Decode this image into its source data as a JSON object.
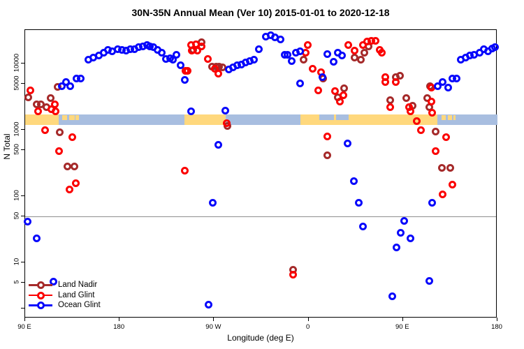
{
  "title": "30N-35N Annual Mean (Ver 10)   2015-01-01 to 2020-12-18",
  "axes": {
    "x": {
      "label": "Longitude (deg E)"
    },
    "y": {
      "label": "N Total"
    }
  },
  "legend": {
    "items": [
      "Land Nadir",
      "Land Glint",
      "Ocean Glint"
    ]
  },
  "colors": {
    "land_nadir": "#A52A2A",
    "land_glint": "#FB0000",
    "ocean_glint": "#0808FB",
    "band_ocean": "#A8BEE0",
    "band_land": "#FFD87D",
    "reference_line": "#8f8f8f",
    "axis": "#000000"
  },
  "chart_data": {
    "type": "scatter",
    "title": "30N-35N Annual Mean (Ver 10)   2015-01-01 to 2020-12-18",
    "xlabel": "Longitude (deg E)",
    "ylabel": "N Total",
    "x_mode": "longitude, continuous degrees east from 90 to 540 (wraps 90E-180-90W-0-90E-180)",
    "xlim": [
      90,
      540
    ],
    "y_scale": "log10",
    "ylim": [
      1.5,
      32000
    ],
    "x_ticks": [
      {
        "lon": 90,
        "label": "90 E"
      },
      {
        "lon": 180,
        "label": "180"
      },
      {
        "lon": 270,
        "label": "90 W"
      },
      {
        "lon": 360,
        "label": "0"
      },
      {
        "lon": 450,
        "label": "90 E"
      },
      {
        "lon": 540,
        "label": "180"
      }
    ],
    "y_ticks": [
      {
        "value": 5,
        "label": "5"
      },
      {
        "value": 10,
        "label": "10"
      },
      {
        "value": 50,
        "label": "50"
      },
      {
        "value": 100,
        "label": "100"
      },
      {
        "value": 500,
        "label": "500"
      },
      {
        "value": 1000,
        "label": "1000"
      },
      {
        "value": 5000,
        "label": "5000"
      },
      {
        "value": 10000,
        "label": "10000"
      }
    ],
    "y_minor_ticks": [
      2
    ],
    "reference_line_y": 50,
    "legend_position": "bottom-left",
    "grid": false,
    "map_band": {
      "description": "strip map of the 30N-35N latitude band",
      "value_range": [
        1190,
        1700
      ],
      "land_segments_lon": [
        [
          90,
          122
        ],
        [
          242,
          281
        ],
        [
          352,
          483
        ]
      ],
      "island_segments_lon": [
        [
          125,
          130
        ],
        [
          132,
          137
        ],
        [
          138,
          141
        ],
        [
          487,
          491
        ],
        [
          493,
          497
        ],
        [
          498,
          500
        ]
      ],
      "sea_overlay_segments_lon": [
        [
          370,
          384
        ],
        [
          386,
          398
        ]
      ]
    },
    "series": [
      {
        "name": "Land Nadir",
        "color_key": "land_nadir",
        "points": [
          [
            93,
            3100
          ],
          [
            101,
            2400
          ],
          [
            105,
            2450
          ],
          [
            110,
            2200
          ],
          [
            114,
            3000
          ],
          [
            121,
            4400
          ],
          [
            123,
            910
          ],
          [
            130,
            280
          ],
          [
            137,
            280
          ],
          [
            250,
            16000
          ],
          [
            258,
            20700
          ],
          [
            268,
            8900
          ],
          [
            272,
            8900
          ],
          [
            275,
            8900
          ],
          [
            278,
            8700
          ],
          [
            283,
            1130
          ],
          [
            345,
            7.7
          ],
          [
            355,
            11300
          ],
          [
            374,
            5900
          ],
          [
            378,
            410
          ],
          [
            388,
            3050
          ],
          [
            394,
            4200
          ],
          [
            404,
            12400
          ],
          [
            410,
            11300
          ],
          [
            413,
            14700
          ],
          [
            417,
            17900
          ],
          [
            438,
            2800
          ],
          [
            443,
            6300
          ],
          [
            447,
            6600
          ],
          [
            453,
            3000
          ],
          [
            459,
            2330
          ],
          [
            473,
            3000
          ],
          [
            475,
            2220
          ],
          [
            476,
            4500
          ],
          [
            481,
            930
          ],
          [
            487,
            270
          ],
          [
            495,
            270
          ]
        ]
      },
      {
        "name": "Land Glint",
        "color_key": "land_glint",
        "points": [
          [
            95,
            3900
          ],
          [
            102,
            1920
          ],
          [
            109,
            980
          ],
          [
            115,
            2020
          ],
          [
            118,
            2450
          ],
          [
            119,
            1880
          ],
          [
            122,
            480
          ],
          [
            132,
            127
          ],
          [
            135,
            770
          ],
          [
            138,
            155
          ],
          [
            242,
            245
          ],
          [
            243,
            7700
          ],
          [
            245,
            7800
          ],
          [
            248,
            19200
          ],
          [
            249,
            15500
          ],
          [
            253,
            19700
          ],
          [
            254,
            15500
          ],
          [
            258,
            18300
          ],
          [
            264,
            11600
          ],
          [
            271,
            8400
          ],
          [
            274,
            7100
          ],
          [
            282,
            1270
          ],
          [
            345,
            6.6
          ],
          [
            357,
            14700
          ],
          [
            359,
            18800
          ],
          [
            364,
            8400
          ],
          [
            369,
            3900
          ],
          [
            372,
            7300
          ],
          [
            378,
            790
          ],
          [
            385,
            3800
          ],
          [
            390,
            2640
          ],
          [
            393,
            3300
          ],
          [
            398,
            19200
          ],
          [
            404,
            15500
          ],
          [
            412,
            18800
          ],
          [
            416,
            21200
          ],
          [
            420,
            22200
          ],
          [
            424,
            21800
          ],
          [
            428,
            16000
          ],
          [
            430,
            14700
          ],
          [
            433,
            6300
          ],
          [
            433,
            5200
          ],
          [
            438,
            2220
          ],
          [
            443,
            5300
          ],
          [
            456,
            2220
          ],
          [
            457,
            1880
          ],
          [
            463,
            1370
          ],
          [
            467,
            1000
          ],
          [
            477,
            4300
          ],
          [
            477,
            2640
          ],
          [
            478,
            1830
          ],
          [
            481,
            480
          ],
          [
            488,
            105
          ],
          [
            491,
            770
          ],
          [
            497,
            150
          ]
        ]
      },
      {
        "name": "Ocean Glint",
        "color_key": "ocean_glint",
        "points": [
          [
            92,
            41
          ],
          [
            101,
            23
          ],
          [
            117,
            5.1
          ],
          [
            125,
            4500
          ],
          [
            129,
            5200
          ],
          [
            133,
            4500
          ],
          [
            139,
            5900
          ],
          [
            143,
            6000
          ],
          [
            150,
            11300
          ],
          [
            155,
            12400
          ],
          [
            160,
            13100
          ],
          [
            165,
            14700
          ],
          [
            169,
            16000
          ],
          [
            173,
            15100
          ],
          [
            178,
            16300
          ],
          [
            182,
            16000
          ],
          [
            186,
            15500
          ],
          [
            190,
            16600
          ],
          [
            194,
            16300
          ],
          [
            198,
            17500
          ],
          [
            202,
            18300
          ],
          [
            206,
            19200
          ],
          [
            209,
            18300
          ],
          [
            212,
            17500
          ],
          [
            216,
            16000
          ],
          [
            220,
            14700
          ],
          [
            224,
            11600
          ],
          [
            228,
            12100
          ],
          [
            231,
            11300
          ],
          [
            234,
            13700
          ],
          [
            238,
            9500
          ],
          [
            242,
            5700
          ],
          [
            248,
            1920
          ],
          [
            281,
            1970
          ],
          [
            274,
            590
          ],
          [
            269,
            80
          ],
          [
            265,
            2.3
          ],
          [
            284,
            8200
          ],
          [
            288,
            8850
          ],
          [
            292,
            9300
          ],
          [
            296,
            9750
          ],
          [
            300,
            10300
          ],
          [
            304,
            10800
          ],
          [
            308,
            11300
          ],
          [
            313,
            16600
          ],
          [
            319,
            25700
          ],
          [
            324,
            26400
          ],
          [
            328,
            25100
          ],
          [
            333,
            23300
          ],
          [
            337,
            13700
          ],
          [
            340,
            13400
          ],
          [
            344,
            11000
          ],
          [
            348,
            14700
          ],
          [
            352,
            15100
          ],
          [
            352,
            5000
          ],
          [
            373,
            6300
          ],
          [
            378,
            14000
          ],
          [
            384,
            10500
          ],
          [
            388,
            14700
          ],
          [
            392,
            13100
          ],
          [
            397,
            620
          ],
          [
            403,
            170
          ],
          [
            408,
            79
          ],
          [
            412,
            35
          ],
          [
            440,
            3.1
          ],
          [
            444,
            17
          ],
          [
            448,
            28
          ],
          [
            451,
            42
          ],
          [
            457,
            23
          ],
          [
            475,
            5.2
          ],
          [
            478,
            80
          ],
          [
            483,
            4500
          ],
          [
            488,
            5300
          ],
          [
            493,
            4300
          ],
          [
            497,
            5900
          ],
          [
            501,
            6000
          ],
          [
            505,
            11300
          ],
          [
            510,
            12400
          ],
          [
            514,
            13100
          ],
          [
            518,
            13700
          ],
          [
            523,
            14700
          ],
          [
            527,
            16300
          ],
          [
            531,
            15100
          ],
          [
            535,
            17000
          ],
          [
            538,
            17500
          ]
        ]
      }
    ]
  }
}
